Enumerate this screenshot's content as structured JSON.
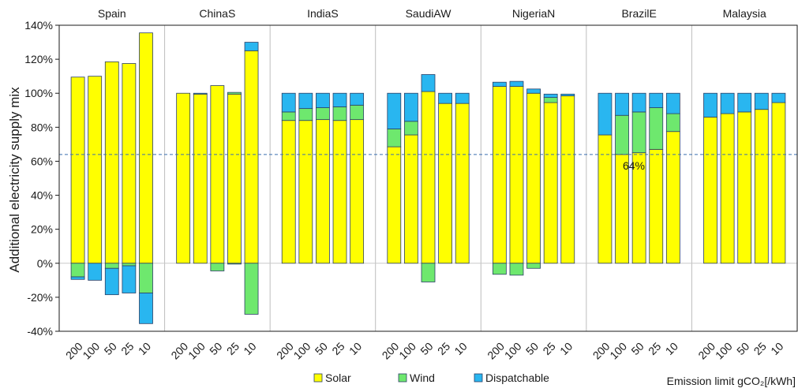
{
  "chart_data": {
    "type": "bar",
    "stacked": true,
    "ylabel": "Additional electricity supply mix",
    "xlabel": "Emission limit gCO₂[/kWh]",
    "ylim": [
      -40,
      140
    ],
    "yticks": [
      "-40%",
      "-20%",
      "0%",
      "20%",
      "40%",
      "60%",
      "80%",
      "100%",
      "120%",
      "140%"
    ],
    "ytick_values": [
      -40,
      -20,
      0,
      20,
      40,
      60,
      80,
      100,
      120,
      140
    ],
    "categories": [
      "200",
      "100",
      "50",
      "25",
      "10"
    ],
    "reference_line": {
      "value": 64,
      "label": "64%",
      "style": "dashed",
      "color": "#3a6fb0"
    },
    "legend": {
      "placement": "bottom-center"
    },
    "colors": {
      "Solar": "#ffff00",
      "Wind": "#6ee86e",
      "Dispatchable": "#29b6f0"
    },
    "series_names": [
      "Solar",
      "Wind",
      "Dispatchable"
    ],
    "panels": [
      {
        "name": "Spain",
        "positive": {
          "Solar": [
            109.5,
            110,
            118.5,
            117.5,
            135.5
          ],
          "Wind": [
            0,
            0,
            0,
            0,
            0
          ],
          "Dispatchable": [
            0,
            0,
            0,
            0,
            0
          ]
        },
        "negative": {
          "Solar": [
            0,
            0,
            0,
            0,
            0
          ],
          "Wind": [
            -8,
            0,
            -3,
            -1.5,
            -17.5
          ],
          "Dispatchable": [
            -1.5,
            -10,
            -15.5,
            -16,
            -18
          ]
        }
      },
      {
        "name": "ChinaS",
        "positive": {
          "Solar": [
            100,
            99.5,
            104.5,
            99.5,
            125
          ],
          "Wind": [
            0,
            0,
            0,
            1,
            0
          ],
          "Dispatchable": [
            0,
            0.5,
            0,
            0,
            5
          ]
        },
        "negative": {
          "Solar": [
            0,
            0,
            0,
            0,
            0
          ],
          "Wind": [
            0,
            0,
            -4.5,
            -0.5,
            -30
          ],
          "Dispatchable": [
            0,
            0,
            0,
            0,
            0
          ]
        }
      },
      {
        "name": "IndiaS",
        "positive": {
          "Solar": [
            84,
            84,
            84.5,
            84,
            84.5
          ],
          "Wind": [
            5,
            7,
            7,
            8,
            8.5
          ],
          "Dispatchable": [
            11,
            9,
            8.5,
            8,
            7
          ]
        },
        "negative": {
          "Solar": [
            0,
            0,
            0,
            0,
            0
          ],
          "Wind": [
            0,
            0,
            0,
            0,
            0
          ],
          "Dispatchable": [
            0,
            0,
            0,
            0,
            0
          ]
        }
      },
      {
        "name": "SaudiAW",
        "positive": {
          "Solar": [
            68.5,
            75.5,
            101,
            94,
            94
          ],
          "Wind": [
            10.5,
            8,
            0,
            0,
            0
          ],
          "Dispatchable": [
            21,
            16.5,
            10,
            6,
            6
          ]
        },
        "negative": {
          "Solar": [
            0,
            0,
            0,
            0,
            0
          ],
          "Wind": [
            0,
            0,
            -11,
            0,
            0
          ],
          "Dispatchable": [
            0,
            0,
            0,
            0,
            0
          ]
        }
      },
      {
        "name": "NigeriaN",
        "positive": {
          "Solar": [
            104,
            104,
            100,
            94.5,
            98.5
          ],
          "Wind": [
            0,
            0,
            0,
            3,
            0
          ],
          "Dispatchable": [
            2.5,
            3,
            2.5,
            2,
            1
          ]
        },
        "negative": {
          "Solar": [
            0,
            0,
            0,
            0,
            0
          ],
          "Wind": [
            -6.5,
            -7,
            -3,
            0,
            0
          ],
          "Dispatchable": [
            0,
            0,
            0,
            0,
            0
          ]
        }
      },
      {
        "name": "BrazilE",
        "positive": {
          "Solar": [
            75.5,
            64,
            65,
            67,
            77.5
          ],
          "Wind": [
            0,
            23,
            24,
            24.5,
            10.5
          ],
          "Dispatchable": [
            24.5,
            13,
            11,
            8.5,
            12
          ]
        },
        "negative": {
          "Solar": [
            0,
            0,
            0,
            0,
            0
          ],
          "Wind": [
            0,
            0,
            0,
            0,
            0
          ],
          "Dispatchable": [
            0,
            0,
            0,
            0,
            0
          ]
        }
      },
      {
        "name": "Malaysia",
        "positive": {
          "Solar": [
            86,
            88,
            89,
            90.5,
            94.5
          ],
          "Wind": [
            0,
            0,
            0,
            0,
            0
          ],
          "Dispatchable": [
            14,
            12,
            11,
            9.5,
            5.5
          ]
        },
        "negative": {
          "Solar": [
            0,
            0,
            0,
            0,
            0
          ],
          "Wind": [
            0,
            0,
            0,
            0,
            0
          ],
          "Dispatchable": [
            0,
            0,
            0,
            0,
            0
          ]
        }
      }
    ]
  }
}
